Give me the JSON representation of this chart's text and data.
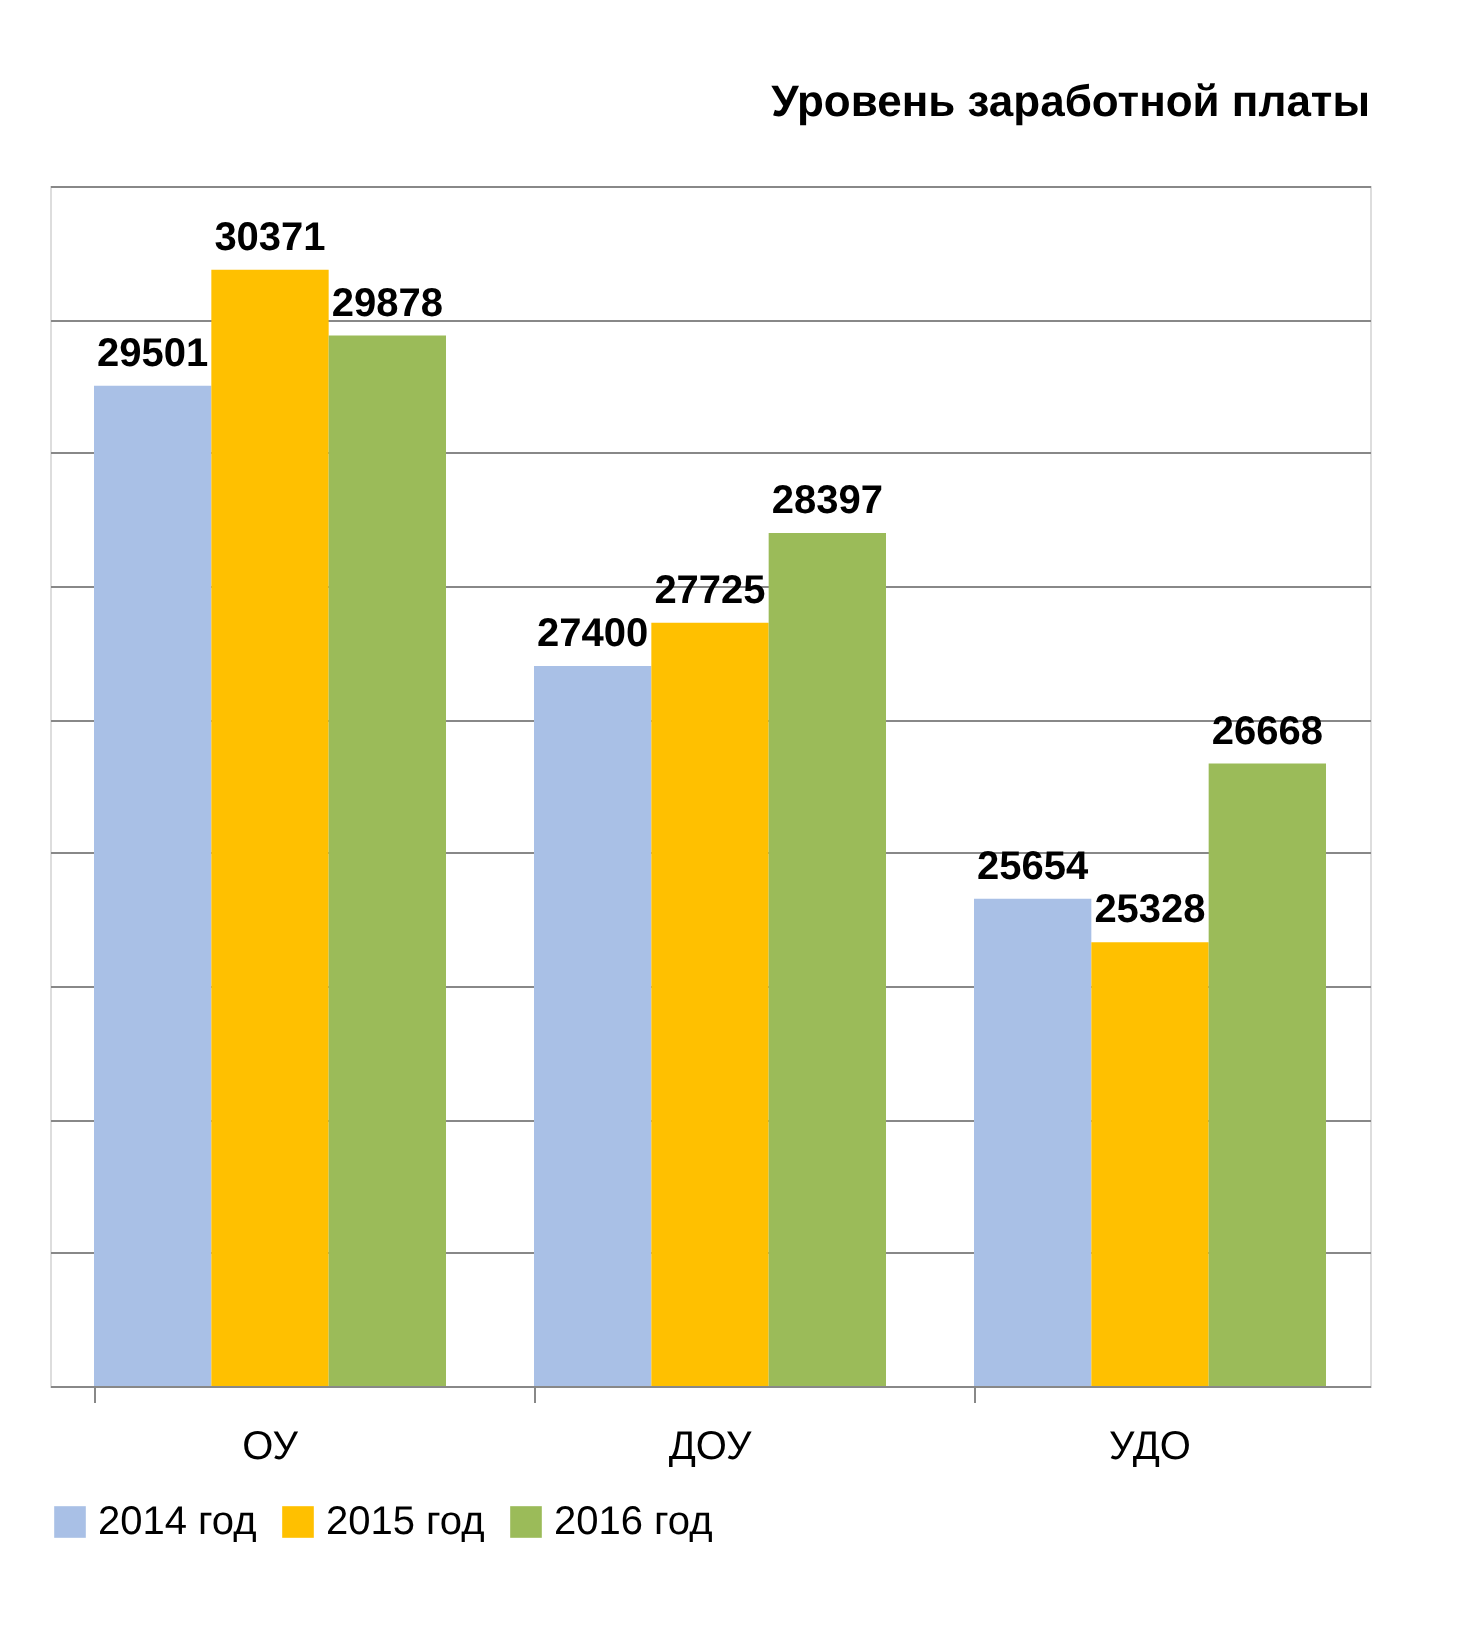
{
  "chart_data": {
    "type": "bar",
    "title": "Уровень заработной платы",
    "categories": [
      "ОУ",
      "ДОУ",
      "УДО"
    ],
    "series": [
      {
        "name": "2014 год",
        "color": "#a9c0e6",
        "values": [
          29501,
          27400,
          25654
        ]
      },
      {
        "name": "2015 год",
        "color": "#ffc000",
        "values": [
          30371,
          27725,
          25328
        ]
      },
      {
        "name": "2016 год",
        "color": "#9bbb59",
        "values": [
          29878,
          28397,
          26668
        ]
      }
    ],
    "ylim": [
      22000,
      31000
    ],
    "yticks": [
      {
        "value": 22000,
        "label": null
      },
      {
        "value": 23000,
        "label": null
      },
      {
        "value": 24000,
        "label": null
      },
      {
        "value": 25000,
        "label": null
      },
      {
        "value": 26000,
        "label": null
      },
      {
        "value": 27000,
        "label": null
      },
      {
        "value": 28000,
        "label": null
      },
      {
        "value": 29000,
        "label": null
      },
      {
        "value": 30000,
        "label": null
      },
      {
        "value": 31000,
        "label": null
      }
    ],
    "grid": "y",
    "legend": "bottom",
    "data_labels": true,
    "tick_labels": "x"
  }
}
